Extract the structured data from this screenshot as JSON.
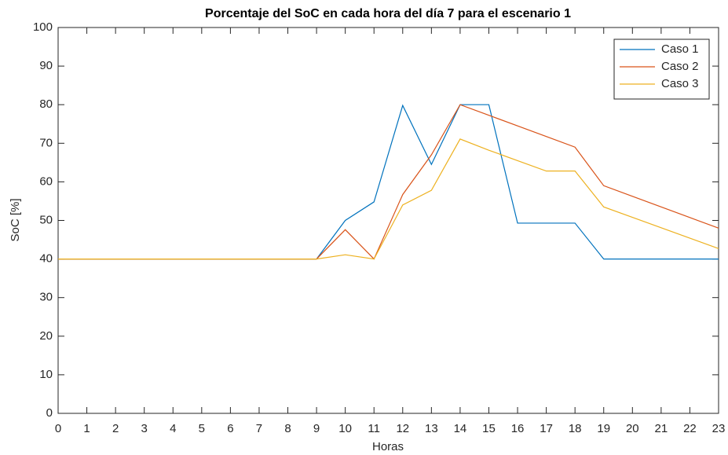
{
  "chart_data": {
    "type": "line",
    "title": "Porcentaje del SoC en cada hora del día 7 para el escenario 1",
    "x_label": "Horas",
    "y_label": "SoC [%]",
    "x": [
      0,
      1,
      2,
      3,
      4,
      5,
      6,
      7,
      8,
      9,
      10,
      11,
      12,
      13,
      14,
      15,
      16,
      17,
      18,
      19,
      20,
      21,
      22,
      23
    ],
    "series": [
      {
        "name": "Caso 1",
        "color": "#0072bd",
        "values": [
          40,
          40,
          40,
          40,
          40,
          40,
          40,
          40,
          40,
          40,
          50,
          54.8,
          79.8,
          64.5,
          80,
          80,
          49.3,
          49.3,
          49.3,
          40,
          40,
          40,
          40,
          40
        ]
      },
      {
        "name": "Caso 2",
        "color": "#d95319",
        "values": [
          40,
          40,
          40,
          40,
          40,
          40,
          40,
          40,
          40,
          40,
          47.6,
          40,
          56.7,
          67,
          80,
          77.25,
          74.5,
          71.75,
          69,
          59,
          56.25,
          53.5,
          50.75,
          48
        ]
      },
      {
        "name": "Caso 3",
        "color": "#edb120",
        "values": [
          40,
          40,
          40,
          40,
          40,
          40,
          40,
          40,
          40,
          40,
          41.1,
          40,
          54,
          57.8,
          71.1,
          68.2,
          65.5,
          62.8,
          62.8,
          53.5,
          50.8,
          48.1,
          45.4,
          42.7
        ]
      }
    ],
    "xlim": [
      0,
      23
    ],
    "ylim": [
      0,
      100
    ],
    "xticks": [
      0,
      1,
      2,
      3,
      4,
      5,
      6,
      7,
      8,
      9,
      10,
      11,
      12,
      13,
      14,
      15,
      16,
      17,
      18,
      19,
      20,
      21,
      22,
      23
    ],
    "yticks": [
      0,
      10,
      20,
      30,
      40,
      50,
      60,
      70,
      80,
      90,
      100
    ],
    "legend": "northeast"
  }
}
